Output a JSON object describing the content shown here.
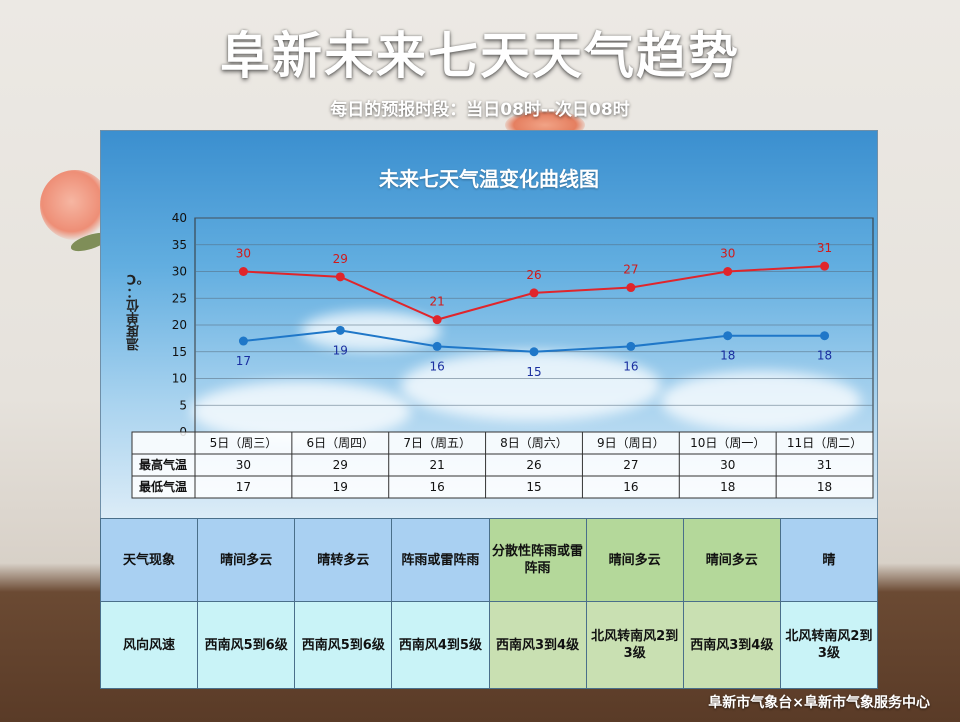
{
  "header": {
    "title": "阜新未来七天天气趋势",
    "subtitle": "每日的预报时段：当日08时--次日08时"
  },
  "footer": {
    "text": "阜新市气象台×阜新市气象服务中心"
  },
  "chart_data": {
    "type": "line",
    "title": "未来七天气温变化曲线图",
    "ylabel": "温度单位：℃",
    "xlabel": "",
    "categories": [
      "5日（周三）",
      "6日（周四）",
      "7日（周五）",
      "8日（周六）",
      "9日（周日）",
      "10日（周一）",
      "11日（周二）"
    ],
    "ylim": [
      0,
      40
    ],
    "yticks": [
      0,
      5,
      10,
      15,
      20,
      25,
      30,
      35,
      40
    ],
    "grid": true,
    "series": [
      {
        "name": "最高气温",
        "values": [
          30,
          29,
          21,
          26,
          27,
          30,
          31
        ],
        "color": "#e0252b",
        "label_color": "#d11a1a"
      },
      {
        "name": "最低气温",
        "values": [
          17,
          19,
          16,
          15,
          16,
          18,
          18
        ],
        "color": "#1f77c8",
        "label_color": "#1a2fa0"
      }
    ],
    "table_rows": [
      {
        "label": "最高气温",
        "values": [
          "30",
          "29",
          "21",
          "26",
          "27",
          "30",
          "31"
        ]
      },
      {
        "label": "最低气温",
        "values": [
          "17",
          "19",
          "16",
          "15",
          "16",
          "18",
          "18"
        ]
      }
    ]
  },
  "weather_table": {
    "weather_label": "天气现象",
    "wind_label": "风向风速",
    "weather": [
      "晴间多云",
      "晴转多云",
      "阵雨或雷阵雨",
      "分散性阵雨或雷阵雨",
      "晴间多云",
      "晴间多云",
      "晴"
    ],
    "wind": [
      "西南风5到6级",
      "西南风5到6级",
      "西南风4到5级",
      "西南风3到4级",
      "北风转南风2到3级",
      "西南风3到4级",
      "北风转南风2到3级"
    ]
  }
}
